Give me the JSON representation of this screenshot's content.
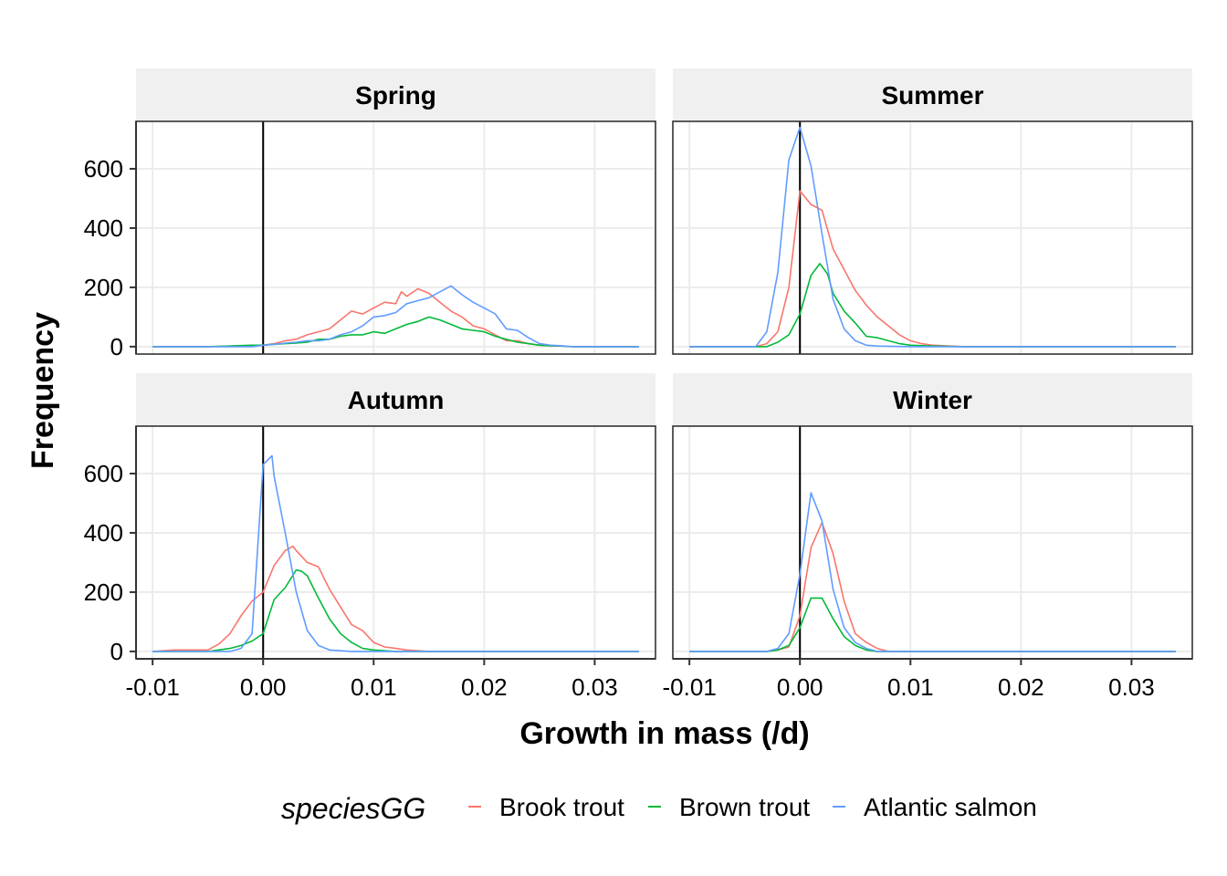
{
  "chart_data": {
    "type": "line",
    "xlabel": "Growth in mass (/d)",
    "ylabel": "Frequency",
    "xlim": [
      -0.0115,
      0.0355
    ],
    "ylim": [
      -25,
      760
    ],
    "x_ticks": [
      -0.01,
      0.0,
      0.01,
      0.02,
      0.03
    ],
    "x_tick_labels": [
      "-0.01",
      "0.00",
      "0.01",
      "0.02",
      "0.03"
    ],
    "y_ticks": [
      0,
      200,
      400,
      600
    ],
    "y_tick_labels": [
      "0",
      "200",
      "400",
      "600"
    ],
    "reference_line_x": 0,
    "grid": true,
    "legend": {
      "title": "speciesGG",
      "position": "bottom",
      "entries": [
        {
          "name": "Brook trout",
          "color": "#F8766D"
        },
        {
          "name": "Brown trout",
          "color": "#00BA38"
        },
        {
          "name": "Atlantic salmon",
          "color": "#619CFF"
        }
      ]
    },
    "panels": [
      {
        "title": "Spring",
        "series": [
          {
            "name": "Brook trout",
            "color": "#F8766D",
            "x": [
              -0.01,
              -0.005,
              0.0,
              0.001,
              0.002,
              0.003,
              0.004,
              0.005,
              0.006,
              0.007,
              0.008,
              0.009,
              0.01,
              0.011,
              0.012,
              0.0125,
              0.013,
              0.014,
              0.015,
              0.016,
              0.017,
              0.018,
              0.019,
              0.02,
              0.021,
              0.022,
              0.023,
              0.024,
              0.025,
              0.026,
              0.027,
              0.028,
              0.03,
              0.034
            ],
            "y": [
              0,
              0,
              5,
              10,
              20,
              25,
              40,
              50,
              60,
              90,
              120,
              110,
              130,
              150,
              145,
              185,
              170,
              195,
              180,
              150,
              120,
              100,
              70,
              60,
              40,
              20,
              20,
              10,
              5,
              3,
              2,
              0,
              0,
              0
            ]
          },
          {
            "name": "Brown trout",
            "color": "#00BA38",
            "x": [
              -0.01,
              -0.005,
              -0.001,
              0.0,
              0.001,
              0.002,
              0.003,
              0.004,
              0.005,
              0.006,
              0.007,
              0.008,
              0.009,
              0.01,
              0.011,
              0.012,
              0.013,
              0.014,
              0.015,
              0.016,
              0.017,
              0.018,
              0.019,
              0.02,
              0.021,
              0.022,
              0.023,
              0.024,
              0.025,
              0.026,
              0.027,
              0.028,
              0.03,
              0.034
            ],
            "y": [
              0,
              0,
              5,
              5,
              8,
              10,
              12,
              15,
              25,
              25,
              35,
              40,
              40,
              50,
              45,
              60,
              75,
              85,
              100,
              90,
              75,
              60,
              55,
              50,
              35,
              25,
              15,
              10,
              5,
              3,
              2,
              0,
              0,
              0
            ]
          },
          {
            "name": "Atlantic salmon",
            "color": "#619CFF",
            "x": [
              -0.01,
              -0.005,
              -0.001,
              0.0,
              0.001,
              0.002,
              0.003,
              0.004,
              0.005,
              0.006,
              0.007,
              0.008,
              0.009,
              0.01,
              0.011,
              0.012,
              0.013,
              0.014,
              0.015,
              0.016,
              0.017,
              0.018,
              0.019,
              0.02,
              0.021,
              0.022,
              0.023,
              0.024,
              0.025,
              0.026,
              0.027,
              0.028,
              0.03,
              0.034
            ],
            "y": [
              0,
              0,
              0,
              5,
              8,
              12,
              15,
              20,
              20,
              25,
              40,
              50,
              70,
              100,
              105,
              115,
              145,
              155,
              165,
              185,
              205,
              175,
              150,
              130,
              110,
              60,
              55,
              30,
              10,
              5,
              3,
              0,
              0,
              0
            ]
          }
        ]
      },
      {
        "title": "Summer",
        "series": [
          {
            "name": "Brook trout",
            "color": "#F8766D",
            "x": [
              -0.01,
              -0.004,
              -0.003,
              -0.002,
              -0.001,
              0.0,
              0.001,
              0.002,
              0.003,
              0.004,
              0.005,
              0.006,
              0.007,
              0.008,
              0.009,
              0.01,
              0.011,
              0.012,
              0.015,
              0.034
            ],
            "y": [
              0,
              0,
              10,
              50,
              200,
              525,
              480,
              460,
              330,
              260,
              190,
              140,
              100,
              70,
              40,
              20,
              10,
              5,
              0,
              0
            ]
          },
          {
            "name": "Brown trout",
            "color": "#00BA38",
            "x": [
              -0.01,
              -0.003,
              -0.002,
              -0.001,
              0.0,
              0.001,
              0.0018,
              0.0025,
              0.003,
              0.004,
              0.005,
              0.006,
              0.007,
              0.008,
              0.009,
              0.01,
              0.012,
              0.015,
              0.034
            ],
            "y": [
              0,
              0,
              15,
              40,
              110,
              240,
              280,
              245,
              180,
              120,
              80,
              35,
              30,
              20,
              10,
              5,
              2,
              0,
              0
            ]
          },
          {
            "name": "Atlantic salmon",
            "color": "#619CFF",
            "x": [
              -0.01,
              -0.004,
              -0.003,
              -0.002,
              -0.001,
              0.0,
              0.001,
              0.002,
              0.003,
              0.004,
              0.005,
              0.006,
              0.007,
              0.01,
              0.034
            ],
            "y": [
              0,
              0,
              50,
              250,
              630,
              740,
              610,
              380,
              160,
              60,
              20,
              5,
              2,
              0,
              0
            ]
          }
        ]
      },
      {
        "title": "Autumn",
        "series": [
          {
            "name": "Brook trout",
            "color": "#F8766D",
            "x": [
              -0.01,
              -0.008,
              -0.005,
              -0.004,
              -0.003,
              -0.002,
              -0.001,
              0.0,
              0.001,
              0.002,
              0.0027,
              0.003,
              0.004,
              0.005,
              0.006,
              0.007,
              0.008,
              0.009,
              0.01,
              0.011,
              0.012,
              0.013,
              0.015,
              0.034
            ],
            "y": [
              0,
              5,
              5,
              25,
              60,
              120,
              170,
              200,
              290,
              340,
              355,
              340,
              300,
              285,
              210,
              150,
              90,
              70,
              30,
              15,
              10,
              5,
              0,
              0
            ]
          },
          {
            "name": "Brown trout",
            "color": "#00BA38",
            "x": [
              -0.01,
              -0.005,
              -0.003,
              -0.002,
              -0.001,
              0.0,
              0.001,
              0.002,
              0.003,
              0.0035,
              0.004,
              0.005,
              0.006,
              0.007,
              0.008,
              0.009,
              0.01,
              0.012,
              0.034
            ],
            "y": [
              0,
              0,
              10,
              20,
              35,
              60,
              175,
              215,
              275,
              270,
              255,
              180,
              110,
              60,
              30,
              10,
              5,
              0,
              0
            ]
          },
          {
            "name": "Atlantic salmon",
            "color": "#619CFF",
            "x": [
              -0.01,
              -0.003,
              -0.002,
              -0.001,
              0.0,
              0.0008,
              0.001,
              0.002,
              0.003,
              0.004,
              0.005,
              0.006,
              0.008,
              0.034
            ],
            "y": [
              0,
              0,
              10,
              60,
              630,
              660,
              590,
              400,
              200,
              70,
              20,
              5,
              0,
              0
            ]
          }
        ]
      },
      {
        "title": "Winter",
        "series": [
          {
            "name": "Brook trout",
            "color": "#F8766D",
            "x": [
              -0.01,
              -0.003,
              -0.002,
              -0.001,
              0.0,
              0.001,
              0.002,
              0.003,
              0.004,
              0.005,
              0.006,
              0.007,
              0.008,
              0.034
            ],
            "y": [
              0,
              0,
              5,
              15,
              120,
              350,
              435,
              330,
              170,
              60,
              30,
              10,
              0,
              0
            ]
          },
          {
            "name": "Brown trout",
            "color": "#00BA38",
            "x": [
              -0.01,
              -0.003,
              -0.002,
              -0.001,
              0.0,
              0.001,
              0.002,
              0.003,
              0.004,
              0.005,
              0.006,
              0.007,
              0.034
            ],
            "y": [
              0,
              0,
              5,
              20,
              80,
              180,
              180,
              110,
              50,
              20,
              5,
              0,
              0
            ]
          },
          {
            "name": "Atlantic salmon",
            "color": "#619CFF",
            "x": [
              -0.01,
              -0.003,
              -0.002,
              -0.001,
              0.0,
              0.001,
              0.002,
              0.003,
              0.004,
              0.005,
              0.006,
              0.007,
              0.034
            ],
            "y": [
              0,
              0,
              10,
              60,
              260,
              535,
              440,
              210,
              80,
              30,
              10,
              0,
              0
            ]
          }
        ]
      }
    ]
  }
}
